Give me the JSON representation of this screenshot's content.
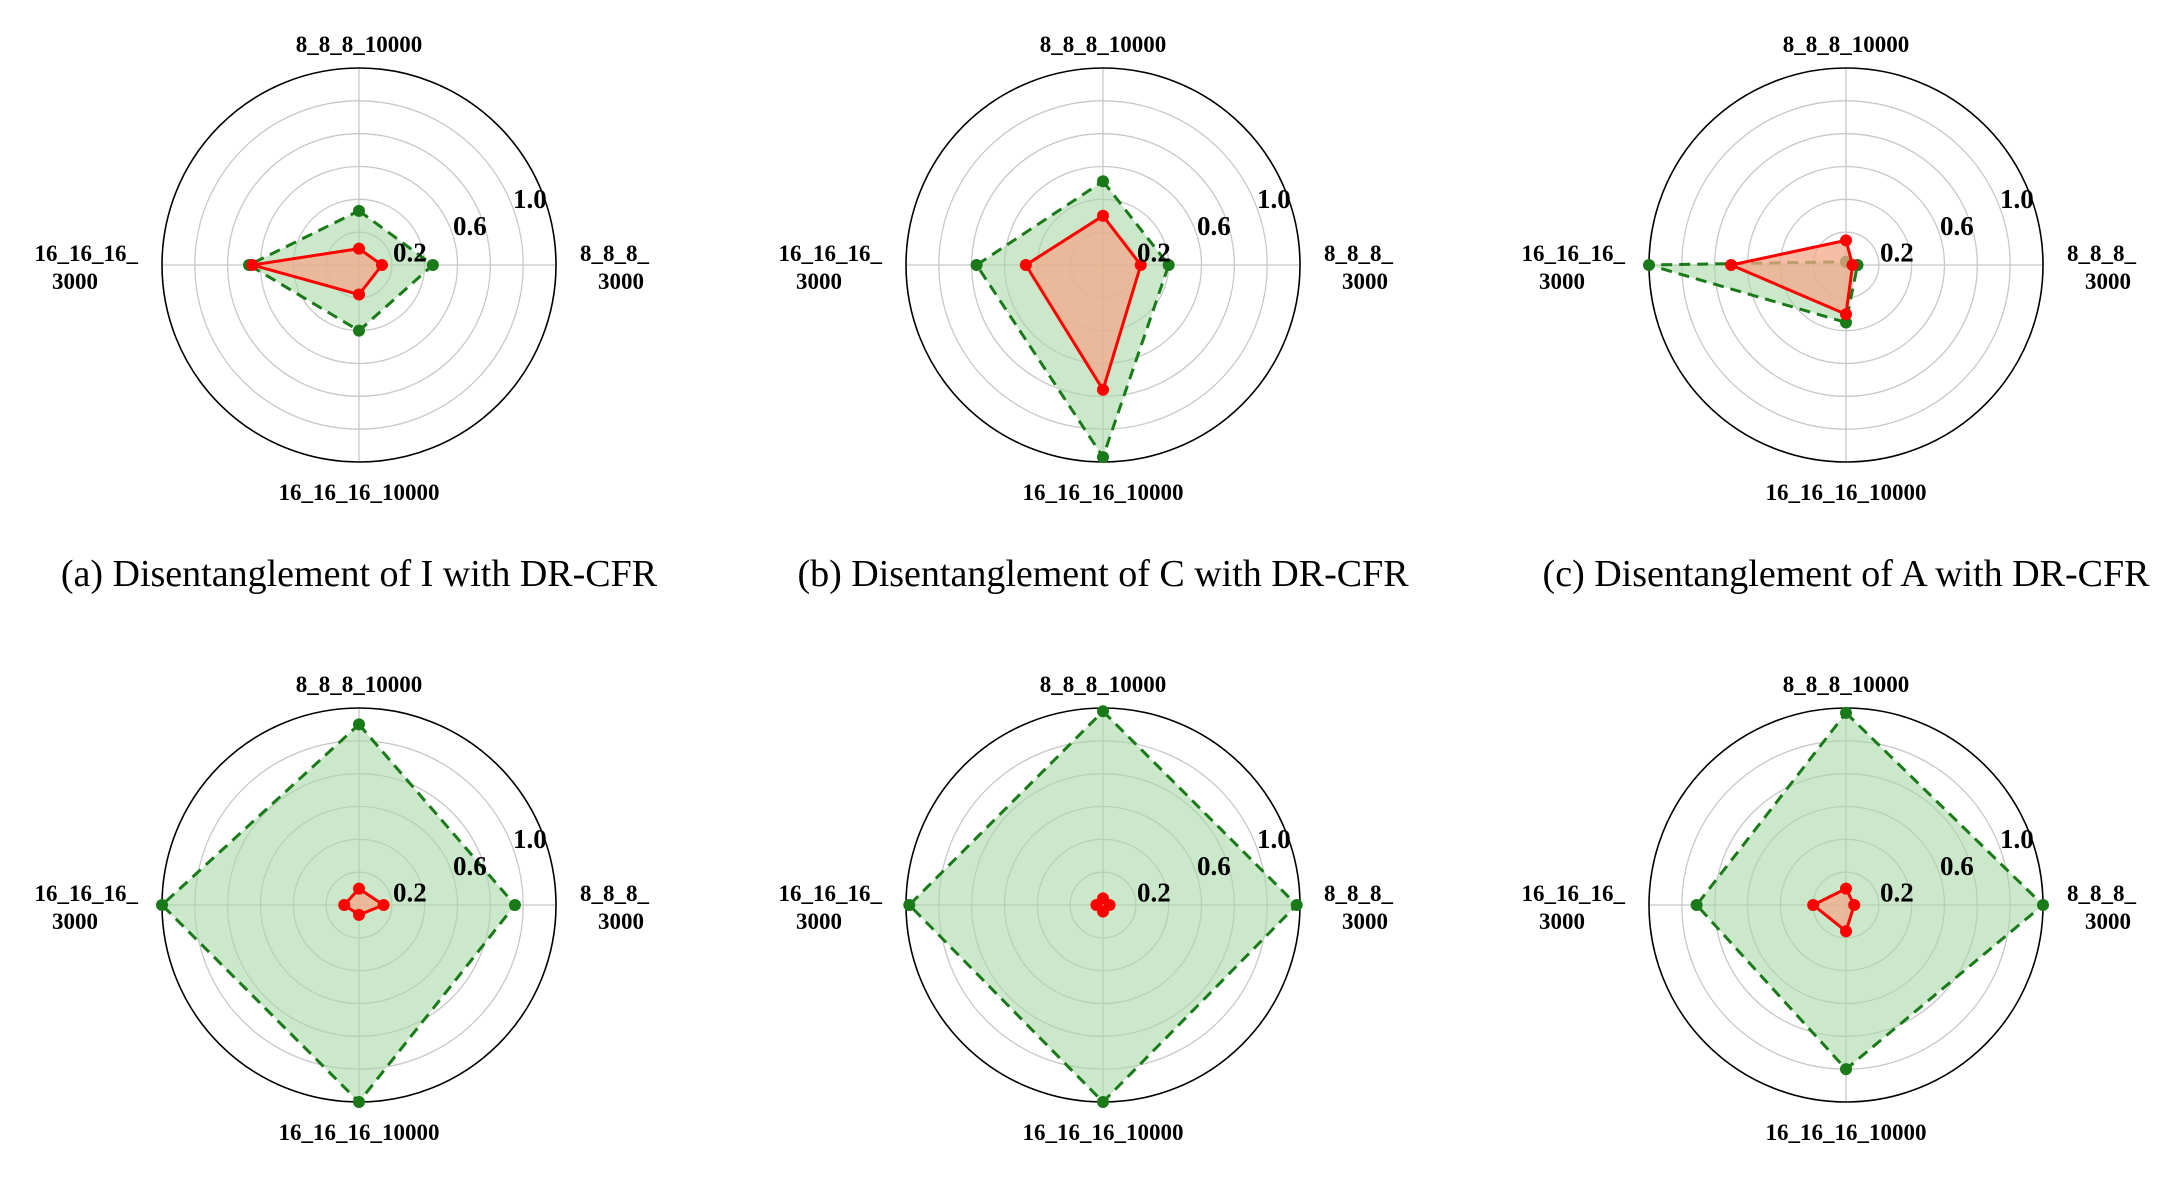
{
  "colors": {
    "axis_ring": "#000000",
    "grid": "#c8c8c8",
    "series1_line": "#1a7a1a",
    "series1_fill": "#a9d8a6",
    "series2_line": "#ff0000",
    "series2_fill": "#f4a88a"
  },
  "chart_data": [
    {
      "type": "radar",
      "caption": "(a) Disentanglement of I with DR-CFR",
      "axes": [
        "8_8_8_10000",
        "8_8_8_\n3000",
        "16_16_16_10000",
        "16_16_16_\n3000"
      ],
      "rlim": [
        0,
        1.2
      ],
      "rticks": [
        0.2,
        0.6,
        1.0
      ],
      "rtick_labels": [
        "0.2",
        "0.6",
        "1.0"
      ],
      "grid": true,
      "series": [
        {
          "style": "dashed",
          "values": [
            0.33,
            0.45,
            0.4,
            0.67
          ]
        },
        {
          "style": "solid",
          "values": [
            0.1,
            0.14,
            0.18,
            0.65
          ]
        }
      ]
    },
    {
      "type": "radar",
      "caption": "(b) Disentanglement of C with DR-CFR",
      "axes": [
        "8_8_8_10000",
        "8_8_8_\n3000",
        "16_16_16_10000",
        "16_16_16_\n3000"
      ],
      "rlim": [
        0,
        1.2
      ],
      "rticks": [
        0.2,
        0.6,
        1.0
      ],
      "rtick_labels": [
        "0.2",
        "0.6",
        "1.0"
      ],
      "grid": true,
      "series": [
        {
          "style": "dashed",
          "values": [
            0.51,
            0.4,
            1.17,
            0.77
          ]
        },
        {
          "style": "solid",
          "values": [
            0.3,
            0.23,
            0.76,
            0.47
          ]
        }
      ]
    },
    {
      "type": "radar",
      "caption": "(c) Disentanglement of A with DR-CFR",
      "axes": [
        "8_8_8_10000",
        "8_8_8_\n3000",
        "16_16_16_10000",
        "16_16_16_\n3000"
      ],
      "rlim": [
        0,
        1.2
      ],
      "rticks": [
        0.2,
        0.6,
        1.0
      ],
      "rtick_labels": [
        "0.2",
        "0.6",
        "1.0"
      ],
      "grid": true,
      "series": [
        {
          "style": "dashed",
          "values": [
            0.02,
            0.07,
            0.35,
            1.2
          ]
        },
        {
          "style": "solid",
          "values": [
            0.15,
            0.04,
            0.3,
            0.7
          ]
        }
      ]
    },
    {
      "type": "radar",
      "caption": "",
      "axes": [
        "8_8_8_10000",
        "8_8_8_\n3000",
        "16_16_16_10000",
        "16_16_16_\n3000"
      ],
      "rlim": [
        0,
        1.2
      ],
      "rticks": [
        0.2,
        0.6,
        1.0
      ],
      "rtick_labels": [
        "0.2",
        "0.6",
        "1.0"
      ],
      "grid": true,
      "series": [
        {
          "style": "dashed",
          "values": [
            1.1,
            0.95,
            1.2,
            1.2
          ]
        },
        {
          "style": "solid",
          "values": [
            0.1,
            0.15,
            0.06,
            0.09
          ]
        }
      ]
    },
    {
      "type": "radar",
      "caption": "",
      "axes": [
        "8_8_8_10000",
        "8_8_8_\n3000",
        "16_16_16_10000",
        "16_16_16_\n3000"
      ],
      "rlim": [
        0,
        1.2
      ],
      "rticks": [
        0.2,
        0.6,
        1.0
      ],
      "rtick_labels": [
        "0.2",
        "0.6",
        "1.0"
      ],
      "grid": true,
      "series": [
        {
          "style": "dashed",
          "values": [
            1.18,
            1.18,
            1.2,
            1.18
          ]
        },
        {
          "style": "solid",
          "values": [
            0.04,
            0.04,
            0.04,
            0.04
          ]
        }
      ]
    },
    {
      "type": "radar",
      "caption": "",
      "axes": [
        "8_8_8_10000",
        "8_8_8_\n3000",
        "16_16_16_10000",
        "16_16_16_\n3000"
      ],
      "rlim": [
        0,
        1.2
      ],
      "rticks": [
        0.2,
        0.6,
        1.0
      ],
      "rtick_labels": [
        "0.2",
        "0.6",
        "1.0"
      ],
      "grid": true,
      "series": [
        {
          "style": "dashed",
          "values": [
            1.17,
            1.2,
            1.0,
            0.91
          ]
        },
        {
          "style": "solid",
          "values": [
            0.1,
            0.05,
            0.16,
            0.2
          ]
        }
      ]
    }
  ]
}
